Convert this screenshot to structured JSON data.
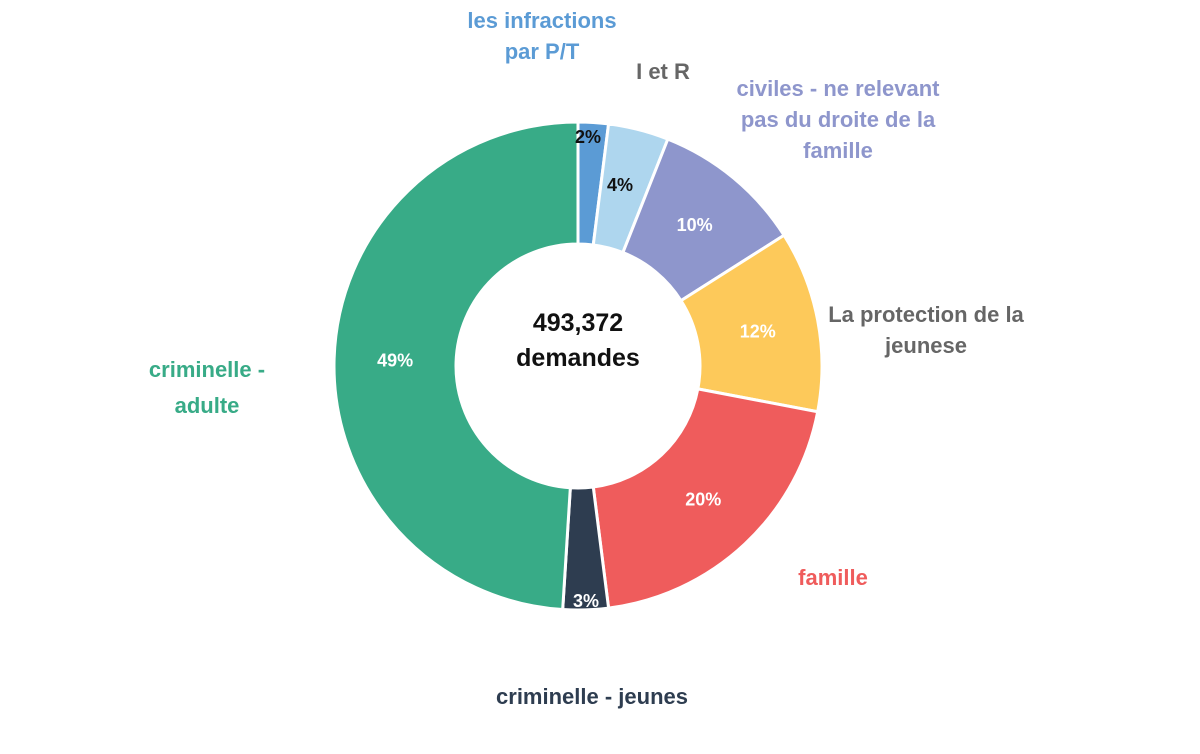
{
  "chart_data": {
    "type": "donut",
    "center_text": [
      "493,372",
      "demandes"
    ],
    "slices": [
      {
        "label": [
          "les infractions",
          "par P/T"
        ],
        "value": 2,
        "value_label": "2%",
        "color": "#5b9bd5",
        "label_color": "#5b9bd5",
        "value_label_color": "#111111"
      },
      {
        "label": [
          "I et R"
        ],
        "value": 4,
        "value_label": "4%",
        "color": "#aed6ee",
        "label_color": "#666666",
        "value_label_color": "#111111"
      },
      {
        "label": [
          "civiles - ne relevant",
          "pas du droite de la",
          "famille"
        ],
        "value": 10,
        "value_label": "10%",
        "color": "#8e96cc",
        "label_color": "#8e96cc",
        "value_label_color": "#ffffff"
      },
      {
        "label": [
          "La protection de la",
          "jeunese"
        ],
        "value": 12,
        "value_label": "12%",
        "color": "#fdc95a",
        "label_color": "#666666",
        "value_label_color": "#ffffff"
      },
      {
        "label": [
          "famille"
        ],
        "value": 20,
        "value_label": "20%",
        "color": "#ef5c5c",
        "label_color": "#ef5c5c",
        "value_label_color": "#ffffff"
      },
      {
        "label": [
          "criminelle - jeunes"
        ],
        "value": 3,
        "value_label": "3%",
        "color": "#2e3d50",
        "label_color": "#2e3d50",
        "value_label_color": "#ffffff"
      },
      {
        "label": [
          "criminelle -",
          "adulte"
        ],
        "value": 49,
        "value_label": "49%",
        "color": "#38ab87",
        "label_color": "#38ab87",
        "value_label_color": "#ffffff"
      }
    ],
    "legend": "none"
  }
}
